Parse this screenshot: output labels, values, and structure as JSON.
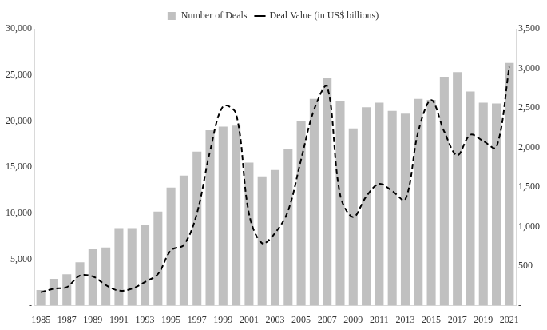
{
  "chart_data": {
    "type": "bar",
    "categories": [
      "1985",
      null,
      "1987",
      null,
      "1989",
      null,
      "1991",
      null,
      "1993",
      null,
      "1995",
      null,
      "1997",
      null,
      "1999",
      null,
      "2001",
      null,
      "2003",
      null,
      "2005",
      null,
      "2007",
      null,
      "2009",
      null,
      "2011",
      null,
      "2013",
      null,
      "2015",
      null,
      "2017",
      null,
      "2019",
      null,
      "2021"
    ],
    "series": [
      {
        "name": "Number of Deals",
        "type": "bar",
        "color": "#c0c0c0",
        "values": [
          1700,
          2900,
          3400,
          4700,
          6100,
          6300,
          8400,
          8400,
          8800,
          10200,
          12800,
          14100,
          16700,
          19000,
          19400,
          19500,
          15500,
          14000,
          14700,
          17000,
          20000,
          22400,
          24700,
          22200,
          19200,
          21500,
          22000,
          21100,
          20800,
          22400,
          22300,
          24800,
          25300,
          23200,
          22000,
          21900,
          26300
        ]
      },
      {
        "name": "Deal Value (in US$ billions)",
        "type": "line",
        "axis": "y2",
        "color": "#000000",
        "line_style": "dashed",
        "values": [
          170,
          215,
          235,
          380,
          370,
          260,
          190,
          215,
          300,
          400,
          700,
          770,
          1170,
          1950,
          2520,
          2430,
          1160,
          790,
          920,
          1200,
          1850,
          2480,
          2770,
          1400,
          1120,
          1380,
          1540,
          1450,
          1340,
          2200,
          2600,
          2200,
          1900,
          2160,
          2080,
          2000,
          3020
        ]
      }
    ],
    "ylim": [
      0,
      30000
    ],
    "yticks": [
      {
        "value": 0,
        "label": "-"
      },
      {
        "value": 5000,
        "label": "5,000"
      },
      {
        "value": 10000,
        "label": "10,000"
      },
      {
        "value": 15000,
        "label": "15,000"
      },
      {
        "value": 20000,
        "label": "20,000"
      },
      {
        "value": 25000,
        "label": "25,000"
      },
      {
        "value": 30000,
        "label": "30,000"
      }
    ],
    "y2lim": [
      0,
      3500
    ],
    "y2ticks": [
      {
        "value": 0,
        "label": "-"
      },
      500,
      {
        "value": 1000,
        "label": "1,000"
      },
      {
        "value": 1500,
        "label": "1,500"
      },
      {
        "value": 2000,
        "label": "2,000"
      },
      {
        "value": 2500,
        "label": "2,500"
      },
      {
        "value": 3000,
        "label": "3,000"
      },
      {
        "value": 3500,
        "label": "3,500"
      }
    ],
    "grid": false,
    "legend": "top"
  }
}
